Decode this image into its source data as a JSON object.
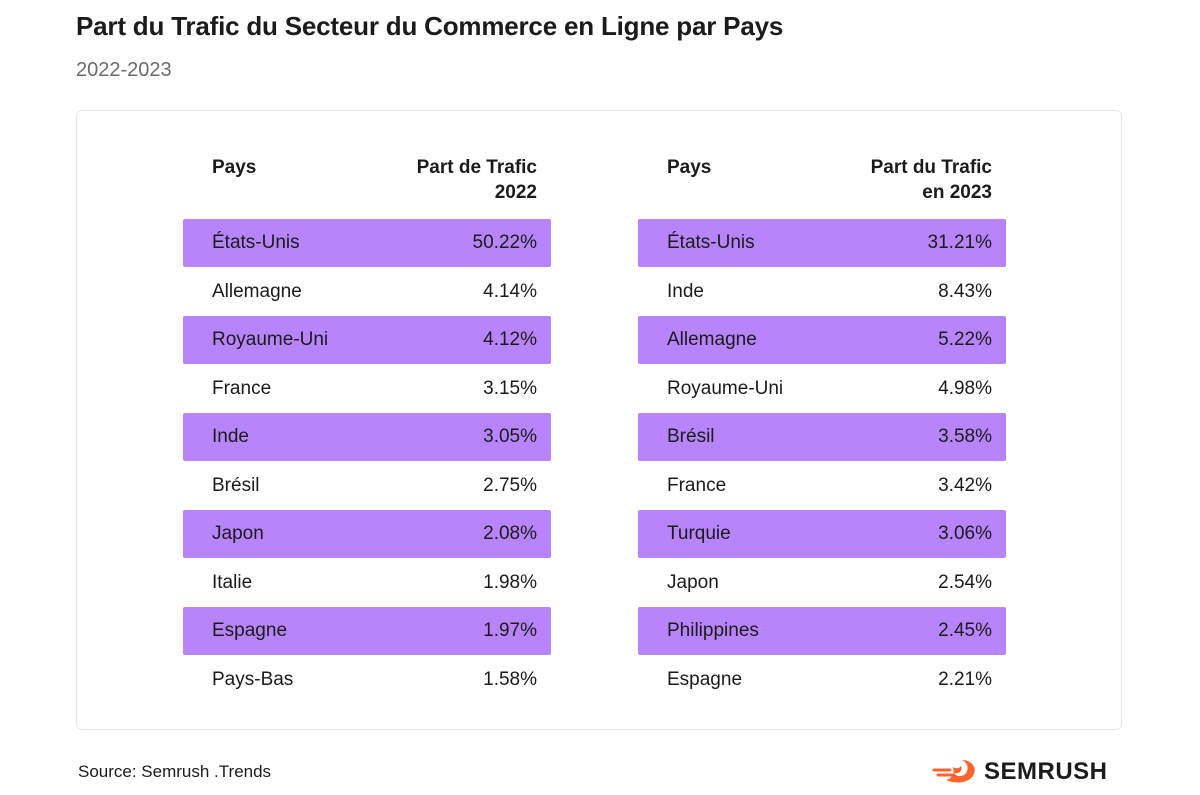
{
  "title": "Part du Trafic du Secteur du Commerce en Ligne par Pays",
  "subtitle": "2022-2023",
  "source": "Source: Semrush .Trends",
  "logo": {
    "text": "SEMRUSH",
    "icon": "semrush-flame-icon",
    "color": "#ff642d"
  },
  "colors": {
    "row_highlight": "#b784fb",
    "card_border": "#e6e6e6"
  },
  "chart_data": [
    {
      "type": "table",
      "columns": [
        "Pays",
        "Part de Trafic\n2022"
      ],
      "rows": [
        {
          "country": "États-Unis",
          "value": "50.22%"
        },
        {
          "country": "Allemagne",
          "value": "4.14%"
        },
        {
          "country": "Royaume-Uni",
          "value": "4.12%"
        },
        {
          "country": "France",
          "value": "3.15%"
        },
        {
          "country": "Inde",
          "value": "3.05%"
        },
        {
          "country": "Brésil",
          "value": "2.75%"
        },
        {
          "country": "Japon",
          "value": "2.08%"
        },
        {
          "country": "Italie",
          "value": "1.98%"
        },
        {
          "country": "Espagne",
          "value": "1.97%"
        },
        {
          "country": "Pays-Bas",
          "value": "1.58%"
        }
      ]
    },
    {
      "type": "table",
      "columns": [
        "Pays",
        "Part du Trafic\nen 2023"
      ],
      "rows": [
        {
          "country": "États-Unis",
          "value": "31.21%"
        },
        {
          "country": "Inde",
          "value": "8.43%"
        },
        {
          "country": "Allemagne",
          "value": "5.22%"
        },
        {
          "country": "Royaume-Uni",
          "value": "4.98%"
        },
        {
          "country": "Brésil",
          "value": "3.58%"
        },
        {
          "country": "France",
          "value": "3.42%"
        },
        {
          "country": "Turquie",
          "value": "3.06%"
        },
        {
          "country": "Japon",
          "value": "2.54%"
        },
        {
          "country": "Philippines",
          "value": "2.45%"
        },
        {
          "country": "Espagne",
          "value": "2.21%"
        }
      ]
    }
  ]
}
